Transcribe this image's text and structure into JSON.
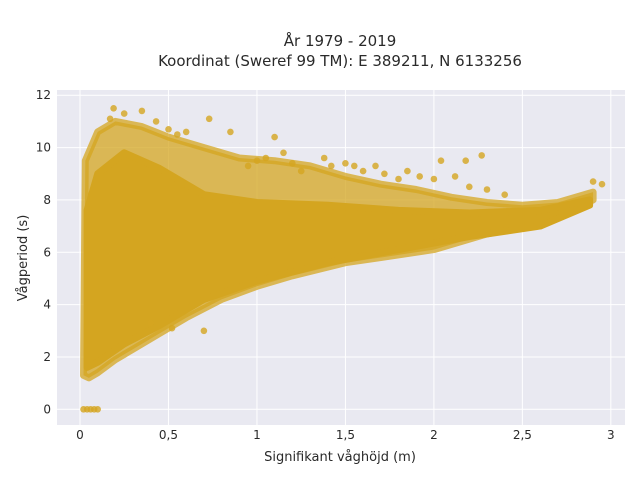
{
  "chart_data": {
    "type": "scatter",
    "title_line1": "År 1979 - 2019",
    "title_line2": "Koordinat (Sweref 99 TM): E 389211, N 6133256",
    "xlabel": "Signifikant våghöjd (m)",
    "ylabel": "Vågperiod (s)",
    "xlim": [
      -0.13,
      3.08
    ],
    "ylim": [
      -0.6,
      12.2
    ],
    "xticks": [
      0,
      0.5,
      1,
      1.5,
      2,
      2.5,
      3
    ],
    "xtick_labels": [
      "0",
      "0,5",
      "1",
      "1,5",
      "2",
      "2,5",
      "3"
    ],
    "yticks": [
      0,
      2,
      4,
      6,
      8,
      10,
      12
    ],
    "ytick_labels": [
      "0",
      "2",
      "4",
      "6",
      "8",
      "10",
      "12"
    ],
    "grid": true,
    "legend": "none",
    "marker_color": "#D4A520",
    "plot_background": "#E9E9F1",
    "point_cloud_outline_upper": [
      [
        0.03,
        9.5
      ],
      [
        0.1,
        10.6
      ],
      [
        0.2,
        11.0
      ],
      [
        0.35,
        10.8
      ],
      [
        0.5,
        10.4
      ],
      [
        0.7,
        10.0
      ],
      [
        0.9,
        9.6
      ],
      [
        1.1,
        9.5
      ],
      [
        1.3,
        9.3
      ],
      [
        1.5,
        8.9
      ],
      [
        1.7,
        8.6
      ],
      [
        1.9,
        8.4
      ],
      [
        2.1,
        8.1
      ],
      [
        2.3,
        7.9
      ],
      [
        2.5,
        7.8
      ],
      [
        2.7,
        7.9
      ],
      [
        2.9,
        8.3
      ]
    ],
    "point_cloud_outline_lower": [
      [
        2.9,
        8.0
      ],
      [
        2.6,
        7.1
      ],
      [
        2.3,
        6.7
      ],
      [
        2.0,
        6.1
      ],
      [
        1.7,
        5.8
      ],
      [
        1.5,
        5.6
      ],
      [
        1.2,
        5.1
      ],
      [
        1.0,
        4.7
      ],
      [
        0.8,
        4.2
      ],
      [
        0.6,
        3.5
      ],
      [
        0.45,
        2.9
      ],
      [
        0.3,
        2.3
      ],
      [
        0.2,
        1.9
      ],
      [
        0.1,
        1.4
      ],
      [
        0.05,
        1.2
      ],
      [
        0.02,
        1.3
      ]
    ],
    "dense_core_upper": [
      [
        0.04,
        7.6
      ],
      [
        0.1,
        9.0
      ],
      [
        0.25,
        9.8
      ],
      [
        0.45,
        9.2
      ],
      [
        0.7,
        8.2
      ],
      [
        1.0,
        7.9
      ],
      [
        1.4,
        7.8
      ],
      [
        1.8,
        7.6
      ],
      [
        2.2,
        7.5
      ],
      [
        2.6,
        7.6
      ],
      [
        2.88,
        8.0
      ]
    ],
    "dense_core_lower": [
      [
        2.88,
        7.8
      ],
      [
        2.6,
        7.0
      ],
      [
        2.2,
        6.6
      ],
      [
        1.8,
        6.1
      ],
      [
        1.4,
        5.6
      ],
      [
        1.0,
        4.9
      ],
      [
        0.7,
        4.2
      ],
      [
        0.45,
        3.2
      ],
      [
        0.25,
        2.5
      ],
      [
        0.1,
        1.8
      ],
      [
        0.04,
        1.6
      ]
    ],
    "outlier_points": [
      [
        0.17,
        11.1
      ],
      [
        0.19,
        11.5
      ],
      [
        0.25,
        11.3
      ],
      [
        0.35,
        11.4
      ],
      [
        0.43,
        11.0
      ],
      [
        0.5,
        10.7
      ],
      [
        0.55,
        10.5
      ],
      [
        0.6,
        10.6
      ],
      [
        0.73,
        11.1
      ],
      [
        0.85,
        10.6
      ],
      [
        0.95,
        9.3
      ],
      [
        1.0,
        9.5
      ],
      [
        1.05,
        9.6
      ],
      [
        1.1,
        10.4
      ],
      [
        1.15,
        9.8
      ],
      [
        1.2,
        9.4
      ],
      [
        1.25,
        9.1
      ],
      [
        1.38,
        9.6
      ],
      [
        1.42,
        9.3
      ],
      [
        1.5,
        9.4
      ],
      [
        1.55,
        9.3
      ],
      [
        1.6,
        9.1
      ],
      [
        1.67,
        9.3
      ],
      [
        1.72,
        9.0
      ],
      [
        1.8,
        8.8
      ],
      [
        1.85,
        9.1
      ],
      [
        1.92,
        8.9
      ],
      [
        2.0,
        8.8
      ],
      [
        2.04,
        9.5
      ],
      [
        2.12,
        8.9
      ],
      [
        2.18,
        9.5
      ],
      [
        2.2,
        8.5
      ],
      [
        2.27,
        9.7
      ],
      [
        2.3,
        8.4
      ],
      [
        2.4,
        8.2
      ],
      [
        2.9,
        8.7
      ],
      [
        2.95,
        8.6
      ],
      [
        0.7,
        3.0
      ],
      [
        0.52,
        3.1
      ],
      [
        0.4,
        3.3
      ]
    ],
    "zero_points": [
      [
        0.02,
        0
      ],
      [
        0.04,
        0
      ],
      [
        0.06,
        0
      ],
      [
        0.08,
        0
      ],
      [
        0.1,
        0
      ]
    ]
  }
}
